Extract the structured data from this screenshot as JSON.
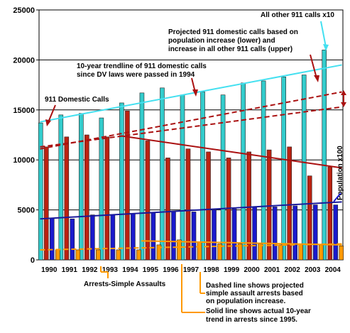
{
  "chart_data": {
    "type": "bar",
    "title": "",
    "xlabel": "",
    "ylabel": "",
    "ylim": [
      0,
      25000
    ],
    "yticks": [
      0,
      5000,
      10000,
      15000,
      20000,
      25000
    ],
    "grid": true,
    "categories": [
      "1990",
      "1991",
      "1992",
      "1993",
      "1994",
      "1995",
      "1996",
      "1997",
      "1998",
      "1999",
      "2000",
      "2001",
      "2002",
      "2003",
      "2004"
    ],
    "series": [
      {
        "name": "All other 911 calls x10",
        "color": "#33cccc",
        "values": [
          13700,
          14500,
          14650,
          14200,
          15700,
          16700,
          17200,
          16500,
          16800,
          16500,
          17700,
          17900,
          18300,
          18500,
          21000
        ]
      },
      {
        "name": "911 Domestic Calls",
        "color": "#bb2211",
        "values": [
          11300,
          12300,
          12500,
          12300,
          14900,
          11900,
          10200,
          11100,
          10800,
          10200,
          10800,
          11000,
          11300,
          8400,
          9300
        ]
      },
      {
        "name": "Population x100",
        "color": "#1a1acc",
        "values": [
          4200,
          4100,
          4500,
          4500,
          4600,
          4700,
          4800,
          4800,
          5000,
          5100,
          5300,
          5300,
          5400,
          5500,
          5500
        ]
      },
      {
        "name": "Arrests-Simple Assaults",
        "color": "#ff9900",
        "values": [
          1000,
          1000,
          1000,
          1000,
          1000,
          1500,
          2000,
          1800,
          1600,
          1600,
          1600,
          1500,
          1500,
          1500,
          1400
        ]
      }
    ],
    "trendlines": [
      {
        "label": "cyan-trend",
        "style": "solid",
        "color": "#44e0f0",
        "x": [
          "1990",
          "2004"
        ],
        "y": [
          13800,
          19500
        ]
      },
      {
        "label": "domestic-trend",
        "style": "solid",
        "color": "#aa1111",
        "x": [
          "1994",
          "2004"
        ],
        "y": [
          12400,
          9200
        ]
      },
      {
        "label": "population-trend",
        "style": "solid",
        "color": "#1a1a9a",
        "x": [
          "1990",
          "2004"
        ],
        "y": [
          4100,
          5800
        ]
      },
      {
        "label": "projected-lower",
        "style": "dashed",
        "color": "#aa1111",
        "x": [
          "1990",
          "2004"
        ],
        "y": [
          11300,
          15300
        ]
      },
      {
        "label": "projected-upper",
        "style": "dashed",
        "color": "#aa1111",
        "x": [
          "1990",
          "2004"
        ],
        "y": [
          11100,
          16800
        ]
      },
      {
        "label": "arrests-projected",
        "style": "dashed",
        "color": "#ff9900",
        "x": [
          "1990",
          "2004"
        ],
        "y": [
          1000,
          1600
        ]
      },
      {
        "label": "arrests-actual",
        "style": "solid",
        "color": "#ff9900",
        "x": [
          "1995",
          "2004"
        ],
        "y": [
          1900,
          1500
        ]
      }
    ],
    "annotations": {
      "all_other": "All other 911 calls x10",
      "projected": [
        "Projected 911 domestic calls based on",
        "population increase (lower) and",
        "increase in all other 911 calls (upper)"
      ],
      "trendline_dv": [
        "10-year trendline of 911 domestic calls",
        "since DV laws were passed in 1994"
      ],
      "domestic": "911 Domestic Calls",
      "population": "Population x100",
      "arrests": "Arrests-Simple Assaults",
      "dashed_note": [
        "Dashed line shows projected",
        "simple assault arrests based",
        "on population increase."
      ],
      "solid_note": [
        "Solid line shows actual 10-year",
        "trend in arrests since 1995."
      ]
    }
  }
}
